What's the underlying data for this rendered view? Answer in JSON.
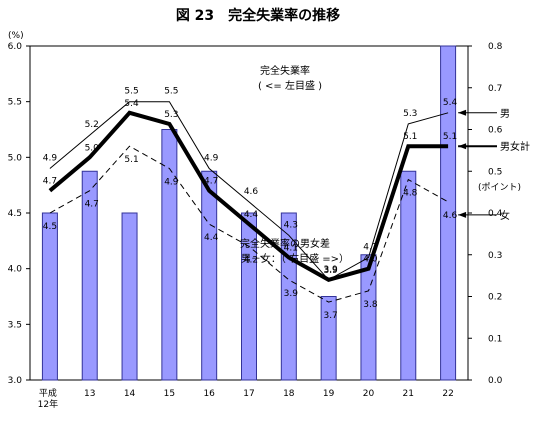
{
  "chart_data": {
    "type": "line",
    "title": "図 23　完全失業率の推移",
    "x_categories": [
      "平成\n12年",
      "13",
      "14",
      "15",
      "16",
      "17",
      "18",
      "19",
      "20",
      "21",
      "22"
    ],
    "left_axis": {
      "unit": "(%)",
      "ylim": [
        3.0,
        6.0
      ],
      "ticks": [
        "3.0",
        "3.5",
        "4.0",
        "4.5",
        "5.0",
        "5.5",
        "6.0"
      ],
      "tick_values": [
        3.0,
        3.5,
        4.0,
        4.5,
        5.0,
        5.5,
        6.0
      ]
    },
    "right_axis": {
      "unit": "(ポイント)",
      "ylim": [
        0.0,
        0.8
      ],
      "ticks": [
        "0.0",
        "0.1",
        "0.2",
        "0.3",
        "0.4",
        "0.5",
        "0.6",
        "0.7",
        "0.8"
      ],
      "tick_values": [
        0.0,
        0.1,
        0.2,
        0.3,
        0.4,
        0.5,
        0.6,
        0.7,
        0.8
      ]
    },
    "lines_annotation": {
      "title": "完全失業率",
      "subtitle": "( <= 左目盛 )"
    },
    "bars_annotation": {
      "title": "完全失業率の男女差",
      "subtitle": "男－女：（ 右目盛 =>）"
    },
    "series": [
      {
        "name": "男",
        "style": "thin-solid",
        "values": [
          4.9,
          5.2,
          5.5,
          5.5,
          4.9,
          4.6,
          4.3,
          3.9,
          4.1,
          5.3,
          5.4
        ],
        "labels": [
          "4.9",
          "5.2",
          "5.5",
          "5.5",
          "4.9",
          "4.6",
          "4.3",
          "3.9",
          "4.1",
          "5.3",
          "5.4"
        ]
      },
      {
        "name": "男女計",
        "style": "thick-solid",
        "values": [
          4.7,
          5.0,
          5.4,
          5.3,
          4.7,
          4.4,
          4.1,
          3.9,
          4.0,
          5.1,
          5.1
        ],
        "labels": [
          "4.7",
          "5.0",
          "5.4",
          "5.3",
          "4.7",
          "4.4",
          "4.1",
          "3.9",
          "4.0",
          "5.1",
          "5.1"
        ]
      },
      {
        "name": "女",
        "style": "dashed",
        "values": [
          4.5,
          4.7,
          5.1,
          4.9,
          4.4,
          4.2,
          3.9,
          3.7,
          3.8,
          4.8,
          4.6
        ],
        "labels": [
          "4.5",
          "4.7",
          "5.1",
          "4.9",
          "4.4",
          "4.2",
          "3.9",
          "3.7",
          "3.8",
          "4.8",
          "4.6"
        ]
      }
    ],
    "bars": {
      "name": "完全失業率の男女差",
      "values": [
        0.4,
        0.5,
        0.4,
        0.6,
        0.5,
        0.4,
        0.4,
        0.2,
        0.3,
        0.5,
        0.8
      ],
      "color": "#9999ff",
      "edge": "#333399"
    },
    "legend_position": "right"
  }
}
